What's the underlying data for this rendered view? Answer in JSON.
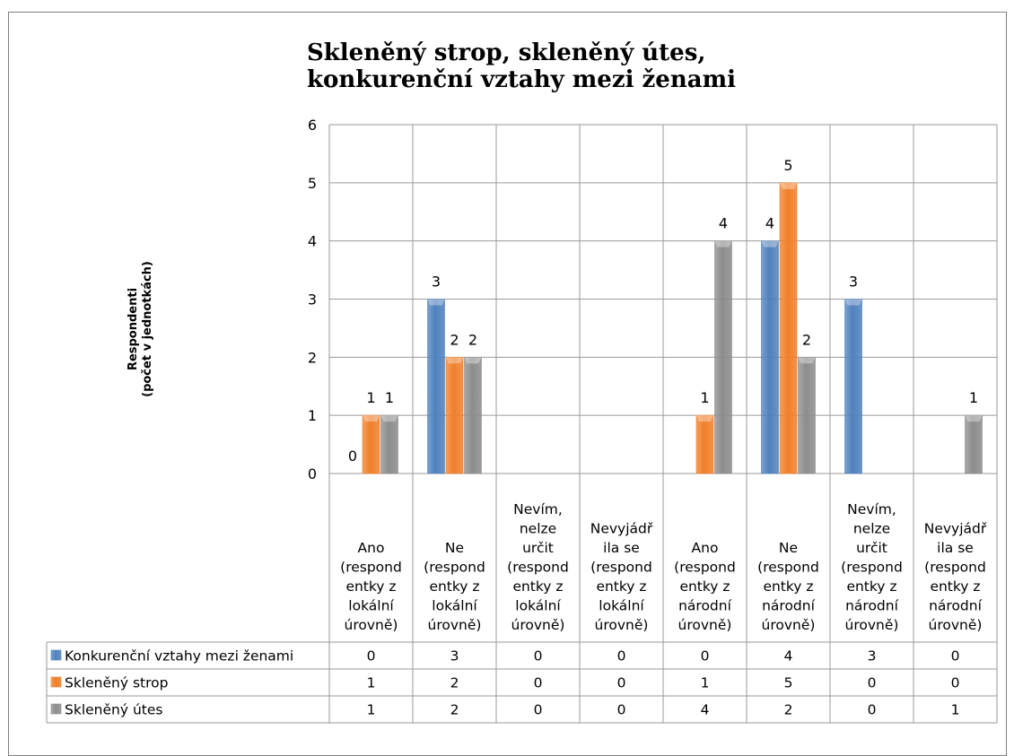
{
  "chart_data": {
    "type": "bar",
    "title": "Skleněný strop, skleněný útes,\nkonkurenční  vztahy mezi ženami",
    "ylabel": "Respondenti\n(počet v jednotkách)",
    "xlabel": "",
    "ylim": [
      0,
      6
    ],
    "yticks": [
      0,
      1,
      2,
      3,
      4,
      5,
      6
    ],
    "grid": true,
    "legend": "data-table",
    "categories": [
      "Ano (respond entky z lokální úrovně)",
      "Ne (respond entky z lokální úrovně)",
      "Nevím, nelze určit (respond entky z lokální úrovně)",
      "Nevyjádř ila se (respond entky z lokální úrovně)",
      "Ano (respond entky z národní úrovně)",
      "Ne (respond entky z národní úrovně)",
      "Nevím, nelze určit (respond entky z národní úrovně)",
      "Nevyjádř ila se (respond entky z národní úrovně)"
    ],
    "category_lines": [
      [
        "Ano",
        "(respond",
        "entky z",
        "lokální",
        "úrovně)"
      ],
      [
        "Ne",
        "(respond",
        "entky z",
        "lokální",
        "úrovně)"
      ],
      [
        "Nevím,",
        "nelze",
        "určit",
        "(respond",
        "entky z",
        "lokální",
        "úrovně)"
      ],
      [
        "Nevyjádř",
        "ila se",
        "(respond",
        "entky z",
        "lokální",
        "úrovně)"
      ],
      [
        "Ano",
        "(respond",
        "entky z",
        "národní",
        "úrovně)"
      ],
      [
        "Ne",
        "(respond",
        "entky z",
        "národní",
        "úrovně)"
      ],
      [
        "Nevím,",
        "nelze",
        "určit",
        "(respond",
        "entky z",
        "národní",
        "úrovně)"
      ],
      [
        "Nevyjádř",
        "ila se",
        "(respond",
        "entky z",
        "národní",
        "úrovně)"
      ]
    ],
    "series": [
      {
        "name": "Konkurenční vztahy mezi ženami",
        "color": "#4f81bd",
        "values": [
          0,
          3,
          0,
          0,
          0,
          4,
          3,
          0
        ],
        "labels_shown": [
          true,
          true,
          false,
          false,
          false,
          true,
          true,
          false
        ]
      },
      {
        "name": "Skleněný strop",
        "color": "#f07f2a",
        "values": [
          1,
          2,
          0,
          0,
          1,
          5,
          0,
          0
        ],
        "labels_shown": [
          true,
          true,
          false,
          false,
          true,
          true,
          false,
          false
        ]
      },
      {
        "name": "Skleněný útes",
        "color": "#8c8c8c",
        "values": [
          1,
          2,
          0,
          0,
          4,
          2,
          0,
          1
        ],
        "labels_shown": [
          true,
          true,
          false,
          false,
          true,
          true,
          false,
          true
        ]
      }
    ]
  }
}
